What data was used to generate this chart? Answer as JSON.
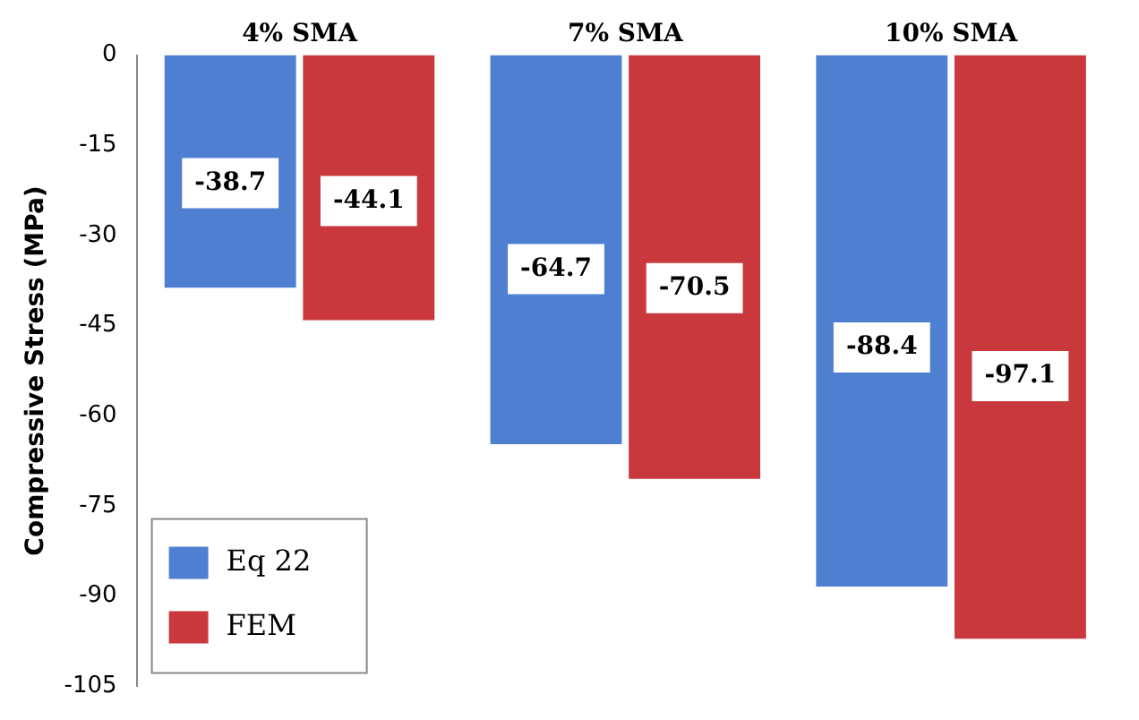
{
  "chart_data": {
    "type": "bar",
    "ylabel": "Compressive Stress (MPa)",
    "categories": [
      "4% SMA",
      "7% SMA",
      "10% SMA"
    ],
    "series": [
      {
        "name": "Eq 22",
        "color": "#4f7fd0",
        "values": [
          -38.7,
          -64.7,
          -88.4
        ]
      },
      {
        "name": "FEM",
        "color": "#c8383c",
        "values": [
          -44.1,
          -70.5,
          -97.1
        ]
      }
    ],
    "ylim": [
      -105,
      0
    ],
    "yticks": [
      0,
      -15,
      -30,
      -45,
      -60,
      -75,
      -90,
      -105
    ],
    "grid": false,
    "legend": "bottom left",
    "data_labels": true
  }
}
